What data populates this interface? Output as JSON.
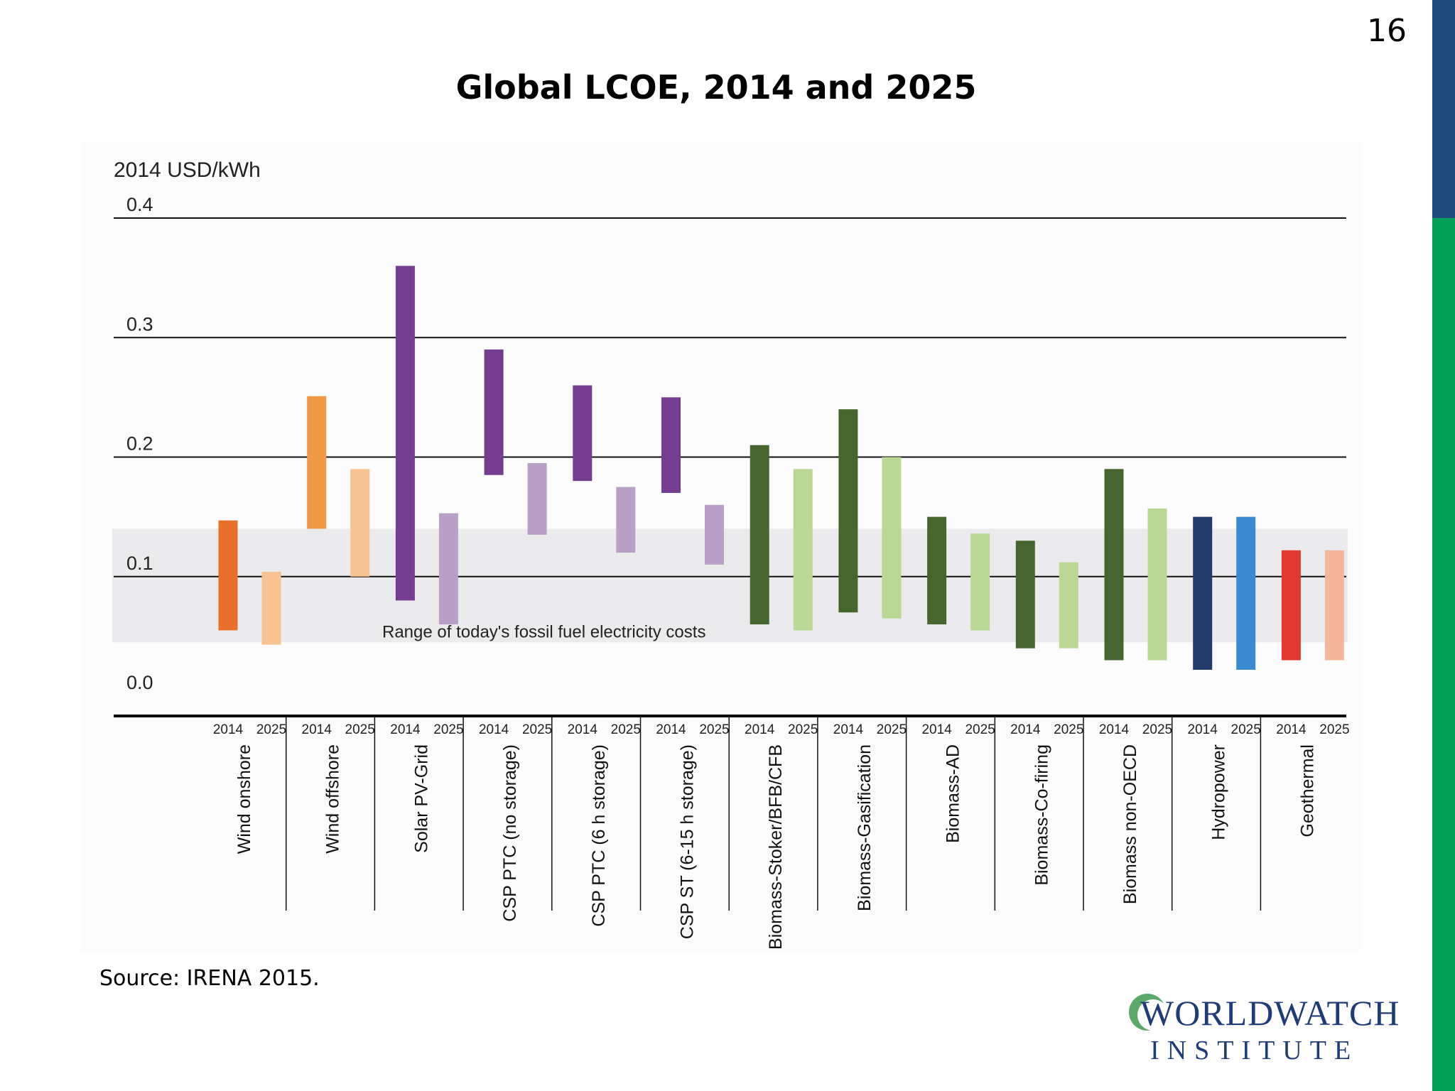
{
  "slide": {
    "number": "16",
    "title": "Global LCOE, 2014 and 2025",
    "source": "Source: IRENA 2015.",
    "logo_line1": "WORLDWATCH",
    "logo_line2": "INSTITUTE",
    "accent_colors": [
      "#1e4a7f",
      "#00a05a"
    ]
  },
  "chart_data": {
    "type": "bar",
    "subtype": "floating-range",
    "title": "",
    "ylabel": "2014 USD/kWh",
    "ylim": [
      0.0,
      0.4
    ],
    "yticks": [
      "0.0",
      "0.1",
      "0.2",
      "0.3",
      "0.4"
    ],
    "grid": true,
    "annotation": "Range of today's fossil fuel electricity costs",
    "fossil_band": [
      0.045,
      0.14
    ],
    "year_labels": [
      "2014",
      "2025"
    ],
    "categories": [
      {
        "name": "Wind onshore",
        "colors": [
          "#e8702a",
          "#f8c393"
        ],
        "ranges": [
          [
            0.055,
            0.147
          ],
          [
            0.043,
            0.104
          ]
        ]
      },
      {
        "name": "Wind offshore",
        "colors": [
          "#f09a45",
          "#f8c393"
        ],
        "ranges": [
          [
            0.14,
            0.251
          ],
          [
            0.1,
            0.19
          ]
        ]
      },
      {
        "name": "Solar PV-Grid",
        "colors": [
          "#743d8f",
          "#b9a0c9"
        ],
        "ranges": [
          [
            0.08,
            0.36
          ],
          [
            0.06,
            0.153
          ]
        ]
      },
      {
        "name": "CSP PTC (no storage)",
        "colors": [
          "#743d8f",
          "#b9a0c9"
        ],
        "ranges": [
          [
            0.185,
            0.29
          ],
          [
            0.135,
            0.195
          ]
        ]
      },
      {
        "name": "CSP PTC (6 h storage)",
        "colors": [
          "#743d8f",
          "#b9a0c9"
        ],
        "ranges": [
          [
            0.18,
            0.26
          ],
          [
            0.12,
            0.175
          ]
        ]
      },
      {
        "name": "CSP ST (6-15 h storage)",
        "colors": [
          "#743d8f",
          "#b9a0c9"
        ],
        "ranges": [
          [
            0.17,
            0.25
          ],
          [
            0.11,
            0.16
          ]
        ]
      },
      {
        "name": "Biomass-Stoker/BFB/CFB",
        "colors": [
          "#45662e",
          "#b9d896"
        ],
        "ranges": [
          [
            0.06,
            0.21
          ],
          [
            0.055,
            0.19
          ]
        ]
      },
      {
        "name": "Biomass-Gasification",
        "colors": [
          "#45662e",
          "#b9d896"
        ],
        "ranges": [
          [
            0.07,
            0.24
          ],
          [
            0.065,
            0.2
          ]
        ]
      },
      {
        "name": "Biomass-AD",
        "colors": [
          "#45662e",
          "#b9d896"
        ],
        "ranges": [
          [
            0.06,
            0.15
          ],
          [
            0.055,
            0.136
          ]
        ]
      },
      {
        "name": "Biomass-Co-firing",
        "colors": [
          "#45662e",
          "#b9d896"
        ],
        "ranges": [
          [
            0.04,
            0.13
          ],
          [
            0.04,
            0.112
          ]
        ]
      },
      {
        "name": "Biomass non-OECD",
        "colors": [
          "#45662e",
          "#b9d896"
        ],
        "ranges": [
          [
            0.03,
            0.19
          ],
          [
            0.03,
            0.157
          ]
        ]
      },
      {
        "name": "Hydropower",
        "colors": [
          "#233a68",
          "#3c8bd0"
        ],
        "ranges": [
          [
            0.022,
            0.15
          ],
          [
            0.022,
            0.15
          ]
        ]
      },
      {
        "name": "Geothermal",
        "colors": [
          "#e23a2e",
          "#f4b79d"
        ],
        "ranges": [
          [
            0.03,
            0.122
          ],
          [
            0.03,
            0.122
          ]
        ]
      }
    ]
  }
}
